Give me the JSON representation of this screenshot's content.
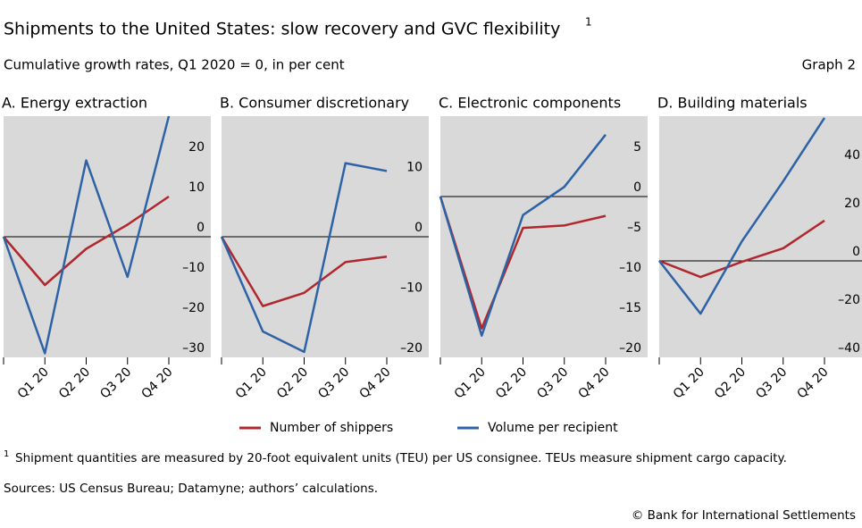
{
  "header": {
    "title": "Shipments to the United States: slow recovery and GVC flexibility",
    "title_note": "1",
    "subtitle": "Cumulative growth rates, Q1 2020 = 0, in per cent",
    "graph_label": "Graph 2"
  },
  "chart_data": [
    {
      "type": "line",
      "title": "A. Energy extraction",
      "categories": [
        null,
        "Q1 20",
        "Q2 20",
        "Q3 20",
        "Q4 20"
      ],
      "series": [
        {
          "name": "Number of shippers",
          "color": "#b0282d",
          "values": [
            0,
            -12,
            -3,
            3,
            10
          ]
        },
        {
          "name": "Volume per recipient",
          "color": "#2d63a6",
          "values": [
            0,
            -29,
            19,
            -10,
            30
          ]
        }
      ],
      "ylim": [
        -30,
        30
      ],
      "yticks": [
        20,
        10,
        0,
        {
          "value": -10,
          "label": "–10"
        },
        {
          "value": -20,
          "label": "–20"
        },
        {
          "value": -30,
          "label": "–30"
        }
      ],
      "y_axis_side": "right",
      "zero_line": true
    },
    {
      "type": "line",
      "title": "B. Consumer discretionary",
      "categories": [
        null,
        "Q1 20",
        "Q2 20",
        "Q3 20",
        "Q4 20"
      ],
      "series": [
        {
          "name": "Number of shippers",
          "color": "#b0282d",
          "values": [
            0,
            -11.5,
            -9.3,
            -4.2,
            -3.3
          ]
        },
        {
          "name": "Volume per recipient",
          "color": "#2d63a6",
          "values": [
            0,
            -15.7,
            -19.1,
            12.2,
            10.9
          ]
        }
      ],
      "ylim": [
        -20,
        20
      ],
      "yticks": [
        10,
        0,
        {
          "value": -10,
          "label": "–10"
        },
        {
          "value": -20,
          "label": "–20"
        }
      ],
      "y_axis_side": "right",
      "zero_line": true
    },
    {
      "type": "line",
      "title": "C. Electronic components",
      "categories": [
        null,
        "Q1 20",
        "Q2 20",
        "Q3 20",
        "Q4 20"
      ],
      "series": [
        {
          "name": "Number of shippers",
          "color": "#b0282d",
          "values": [
            0,
            -16.4,
            -3.9,
            -3.6,
            -2.4
          ]
        },
        {
          "name": "Volume per recipient",
          "color": "#2d63a6",
          "values": [
            0,
            -17.3,
            -2.3,
            1.2,
            7.7
          ]
        }
      ],
      "ylim": [
        -20,
        10
      ],
      "yticks": [
        5,
        0,
        {
          "value": -5,
          "label": "–5"
        },
        {
          "value": -10,
          "label": "–10"
        },
        {
          "value": -15,
          "label": "–15"
        },
        {
          "value": -20,
          "label": "–20"
        }
      ],
      "y_axis_side": "right",
      "zero_line": true
    },
    {
      "type": "line",
      "title": "D. Building materials",
      "categories": [
        null,
        "Q1 20",
        "Q2 20",
        "Q3 20",
        "Q4 20"
      ],
      "series": [
        {
          "name": "Number of shippers",
          "color": "#b0282d",
          "values": [
            0,
            -6.7,
            -0.4,
            5.2,
            16.7
          ]
        },
        {
          "name": "Volume per recipient",
          "color": "#2d63a6",
          "values": [
            0,
            -21.9,
            8.1,
            33,
            59.3
          ]
        }
      ],
      "ylim": [
        -40,
        60
      ],
      "yticks": [
        40,
        20,
        0,
        {
          "value": -20,
          "label": "–20"
        },
        {
          "value": -40,
          "label": "–40"
        }
      ],
      "y_axis_side": "right",
      "zero_line": true
    }
  ],
  "footnote": {
    "marker": "1",
    "text": "Shipment quantities are measured by 20-foot equivalent units (TEU) per US consignee. TEUs measure shipment cargo capacity."
  },
  "sources": "Sources: US Census Bureau; Datamyne; authors’ calculations.",
  "copyright": "© Bank for International Settlements"
}
